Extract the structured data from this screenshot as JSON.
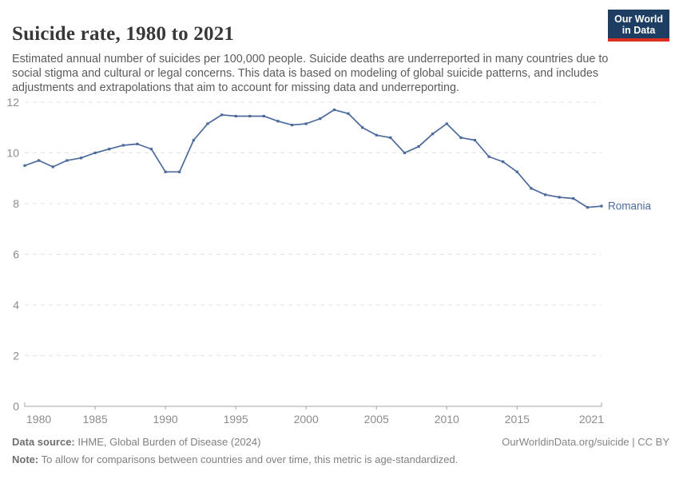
{
  "header": {
    "title": "Suicide rate, 1980 to 2021",
    "subtitle": "Estimated annual number of suicides per 100,000 people. Suicide deaths are underreported in many countries due to social stigma and cultural or legal concerns. This data is based on modeling of global suicide patterns, and includes adjustments and extrapolations that aim to account for missing data and underreporting.",
    "logo": {
      "line1": "Our World",
      "line2": "in Data"
    }
  },
  "chart_data": {
    "type": "line",
    "title": "Suicide rate, 1980 to 2021",
    "xlabel": "",
    "ylabel": "",
    "x": [
      1980,
      1981,
      1982,
      1983,
      1984,
      1985,
      1986,
      1987,
      1988,
      1989,
      1990,
      1991,
      1992,
      1993,
      1994,
      1995,
      1996,
      1997,
      1998,
      1999,
      2000,
      2001,
      2002,
      2003,
      2004,
      2005,
      2006,
      2007,
      2008,
      2009,
      2010,
      2011,
      2012,
      2013,
      2014,
      2015,
      2016,
      2017,
      2018,
      2019,
      2020,
      2021
    ],
    "series": [
      {
        "name": "Romania",
        "color": "#4c6a9c",
        "values": [
          9.5,
          9.7,
          9.45,
          9.7,
          9.8,
          10.0,
          10.15,
          10.3,
          10.35,
          10.15,
          9.25,
          9.25,
          10.5,
          11.15,
          11.5,
          11.45,
          11.45,
          11.45,
          11.25,
          11.1,
          11.15,
          11.35,
          11.7,
          11.55,
          11.0,
          10.7,
          10.6,
          10.0,
          10.25,
          10.75,
          11.15,
          10.6,
          10.5,
          9.85,
          9.65,
          9.25,
          8.6,
          8.35,
          8.25,
          8.2,
          7.85,
          7.9
        ]
      }
    ],
    "ylim": [
      0,
      12
    ],
    "yticks": [
      0,
      2,
      4,
      6,
      8,
      10,
      12
    ],
    "xticks": [
      1980,
      1985,
      1990,
      1995,
      2000,
      2005,
      2010,
      2015,
      2021
    ],
    "grid": "dashed-horizontal",
    "legend_position": "line-end-label"
  },
  "footer": {
    "source_label": "Data source:",
    "source_text": "IHME, Global Burden of Disease (2024)",
    "note_label": "Note:",
    "note_text": "To allow for comparisons between countries and over time, this metric is age-standardized.",
    "attribution": "OurWorldinData.org/suicide | CC BY"
  },
  "colors": {
    "line": "#4c6a9c",
    "grid": "#e2e2e2",
    "axis": "#a5a5a5",
    "tick_label": "#8c8c8c",
    "title": "#383838",
    "subtitle": "#5b5b5b",
    "footer": "#808080",
    "logo_bg": "#1d3d63",
    "logo_stripe": "#dc2e21"
  }
}
